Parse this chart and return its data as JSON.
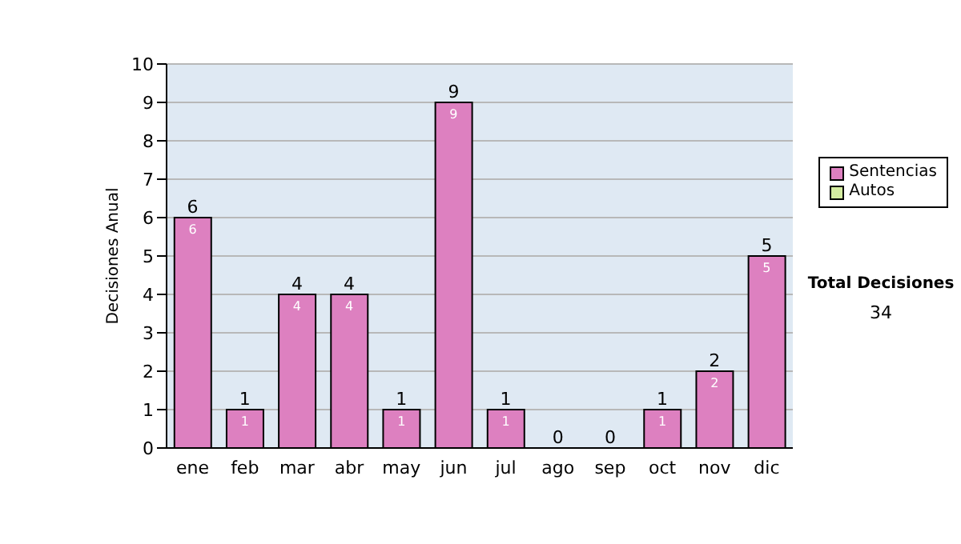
{
  "chart_data": {
    "type": "bar",
    "ylabel": "Decisiones Anual",
    "categories": [
      "ene",
      "feb",
      "mar",
      "abr",
      "may",
      "jun",
      "jul",
      "ago",
      "sep",
      "oct",
      "nov",
      "dic"
    ],
    "stacked": true,
    "series": [
      {
        "name": "Sentencias",
        "color": "#dd80c0",
        "values": [
          6,
          1,
          4,
          4,
          1,
          9,
          1,
          0,
          0,
          1,
          2,
          5
        ],
        "value_labels": [
          "6",
          "1",
          "4",
          "4",
          "1",
          "9",
          "1",
          null,
          null,
          "1",
          "2",
          "5"
        ]
      },
      {
        "name": "Autos",
        "color": "#d4eca0",
        "values": [
          0,
          0,
          0,
          0,
          0,
          0,
          0,
          0,
          0,
          0,
          0,
          0
        ]
      }
    ],
    "totals": [
      "6",
      "1",
      "4",
      "4",
      "1",
      "9",
      "1",
      "0",
      "0",
      "1",
      "2",
      "5"
    ],
    "ylim": [
      0,
      10
    ],
    "yticks": [
      0,
      1,
      2,
      3,
      4,
      5,
      6,
      7,
      8,
      9,
      10
    ],
    "grid": "y",
    "legend": "right",
    "annotations": [
      "Total Decisiones",
      "34"
    ]
  }
}
